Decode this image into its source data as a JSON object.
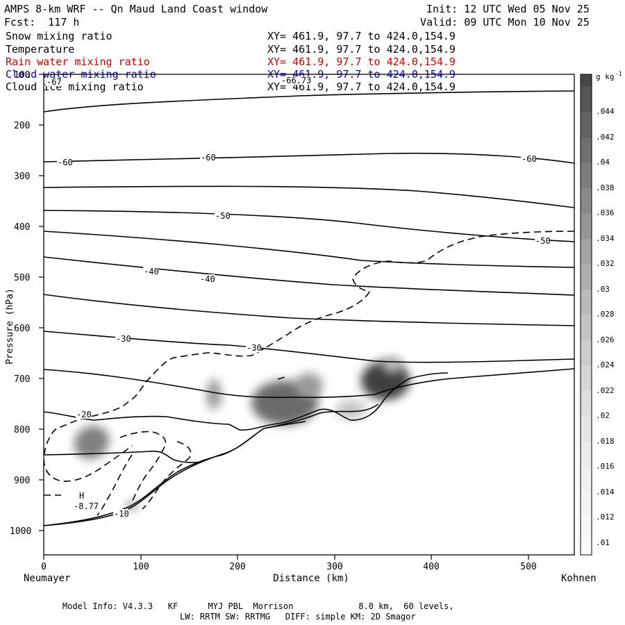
{
  "header": {
    "title": "AMPS 8-km WRF -- Qn Maud Land Coast window",
    "forecast": "Fcst:  117 h",
    "init": "Init: 12 UTC Wed 05 Nov 25",
    "valid": "Valid: 09 UTC Mon 10 Nov 25"
  },
  "legend": [
    {
      "label": "Snow mixing ratio",
      "xy": "XY= 461.9, 97.7 to 424.0,154.9",
      "color": "#000000"
    },
    {
      "label": "Temperature",
      "xy": "XY= 461.9, 97.7 to 424.0,154.9",
      "color": "#000000"
    },
    {
      "label": "Rain water mixing ratio",
      "xy": "XY= 461.9, 97.7 to 424.0,154.9",
      "color": "#ff0000"
    },
    {
      "label": "Cloud water mixing ratio",
      "xy": "XY= 461.9, 97.7 to 424.0,154.9",
      "color": "#0000ff"
    },
    {
      "label": "Cloud ice mixing ratio",
      "xy": "XY= 461.9, 97.7 to 424.0,154.9",
      "color": "#000000"
    }
  ],
  "chart_data": {
    "type": "cross-section",
    "xlabel": "Distance (km)",
    "ylabel": "Pressure (hPa)",
    "xlim": [
      0,
      550
    ],
    "ylim": [
      1050,
      100
    ],
    "x_ticks": [
      "0",
      "100",
      "200",
      "300",
      "400",
      "500"
    ],
    "y_ticks": [
      "100",
      "200",
      "300",
      "400",
      "500",
      "600",
      "700",
      "800",
      "900",
      "1000"
    ],
    "left_endpoint": "Neumayer",
    "right_endpoint": "Kohnen",
    "colorbar": {
      "unit": "g kg",
      "unit_exp": "-1",
      "levels": [
        ".01",
        ".012",
        ".014",
        ".016",
        ".018",
        ".02",
        ".022",
        ".024",
        ".026",
        ".028",
        ".03",
        ".032",
        ".034",
        ".036",
        ".038",
        ".04",
        ".042",
        ".044"
      ]
    },
    "temperature_labels": [
      "-67",
      "-66.73",
      "-60",
      "-60",
      "-60",
      "-50",
      "-50",
      "-40",
      "-40",
      "-30",
      "-30",
      "-20",
      "-10",
      "H",
      "-8.77"
    ]
  },
  "footer": {
    "line1": "Model Info: V4.3.3   KF      MYJ PBL  Morrison             8.0 km,  60 levels,",
    "line2": "LW: RRTM SW: RRTMG   DIFF: simple KM: 2D Smagor"
  }
}
